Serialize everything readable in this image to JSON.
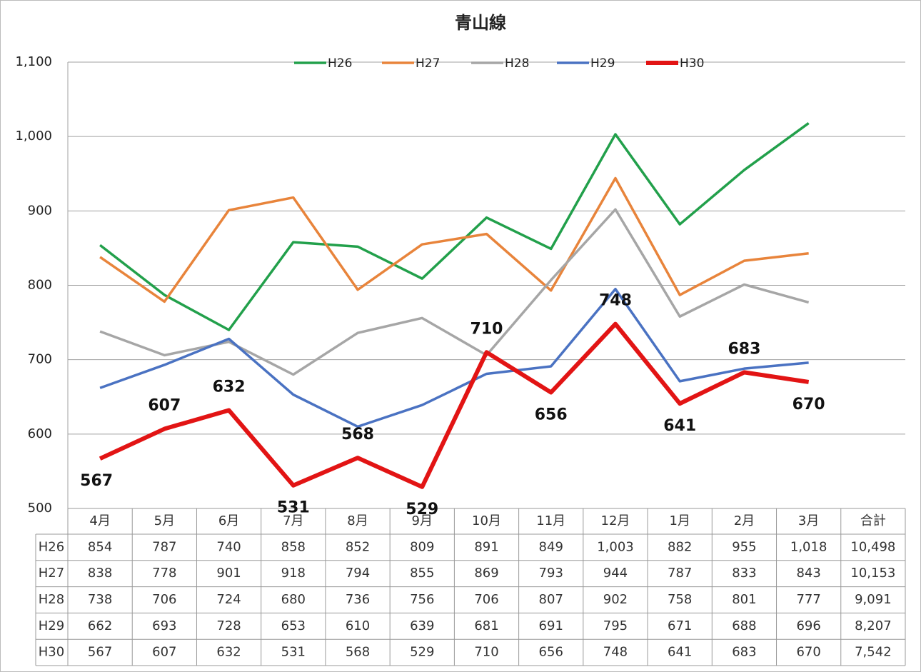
{
  "chart_data": {
    "type": "line",
    "title": "青山線",
    "categories": [
      "4月",
      "5月",
      "6月",
      "7月",
      "8月",
      "9月",
      "10月",
      "11月",
      "12月",
      "1月",
      "2月",
      "3月"
    ],
    "total_label": "合計",
    "ylim": [
      500,
      1100
    ],
    "yticks": [
      500,
      600,
      700,
      800,
      900,
      {
        "value": 1000,
        "label": "1,000"
      },
      {
        "value": 1100,
        "label": "1,100"
      }
    ],
    "grid": true,
    "legend": "top",
    "series": [
      {
        "name": "H26",
        "color": "#22a04b",
        "values": [
          854,
          787,
          740,
          858,
          852,
          809,
          891,
          849,
          1003,
          882,
          955,
          1018
        ],
        "value_labels": [
          "854",
          "787",
          "740",
          "858",
          "852",
          "809",
          "891",
          "849",
          "1,003",
          "882",
          "955",
          "1,018"
        ],
        "total": "10,498"
      },
      {
        "name": "H27",
        "color": "#e8843b",
        "values": [
          838,
          778,
          901,
          918,
          794,
          855,
          869,
          793,
          944,
          787,
          833,
          843
        ],
        "value_labels": [
          "838",
          "778",
          "901",
          "918",
          "794",
          "855",
          "869",
          "793",
          "944",
          "787",
          "833",
          "843"
        ],
        "total": "10,153"
      },
      {
        "name": "H28",
        "color": "#a6a6a6",
        "values": [
          738,
          706,
          724,
          680,
          736,
          756,
          706,
          807,
          902,
          758,
          801,
          777
        ],
        "value_labels": [
          "738",
          "706",
          "724",
          "680",
          "736",
          "756",
          "706",
          "807",
          "902",
          "758",
          "801",
          "777"
        ],
        "total": "9,091"
      },
      {
        "name": "H29",
        "color": "#4a72c2",
        "values": [
          662,
          693,
          728,
          653,
          610,
          639,
          681,
          691,
          795,
          671,
          688,
          696
        ],
        "value_labels": [
          "662",
          "693",
          "728",
          "653",
          "610",
          "639",
          "681",
          "691",
          "795",
          "671",
          "688",
          "696"
        ],
        "total": "8,207"
      },
      {
        "name": "H30",
        "color": "#e21414",
        "values": [
          567,
          607,
          632,
          531,
          568,
          529,
          710,
          656,
          748,
          641,
          683,
          670
        ],
        "value_labels": [
          "567",
          "607",
          "632",
          "531",
          "568",
          "529",
          "710",
          "656",
          "748",
          "641",
          "683",
          "670"
        ],
        "total": "7,542",
        "data_labels": true
      }
    ]
  }
}
